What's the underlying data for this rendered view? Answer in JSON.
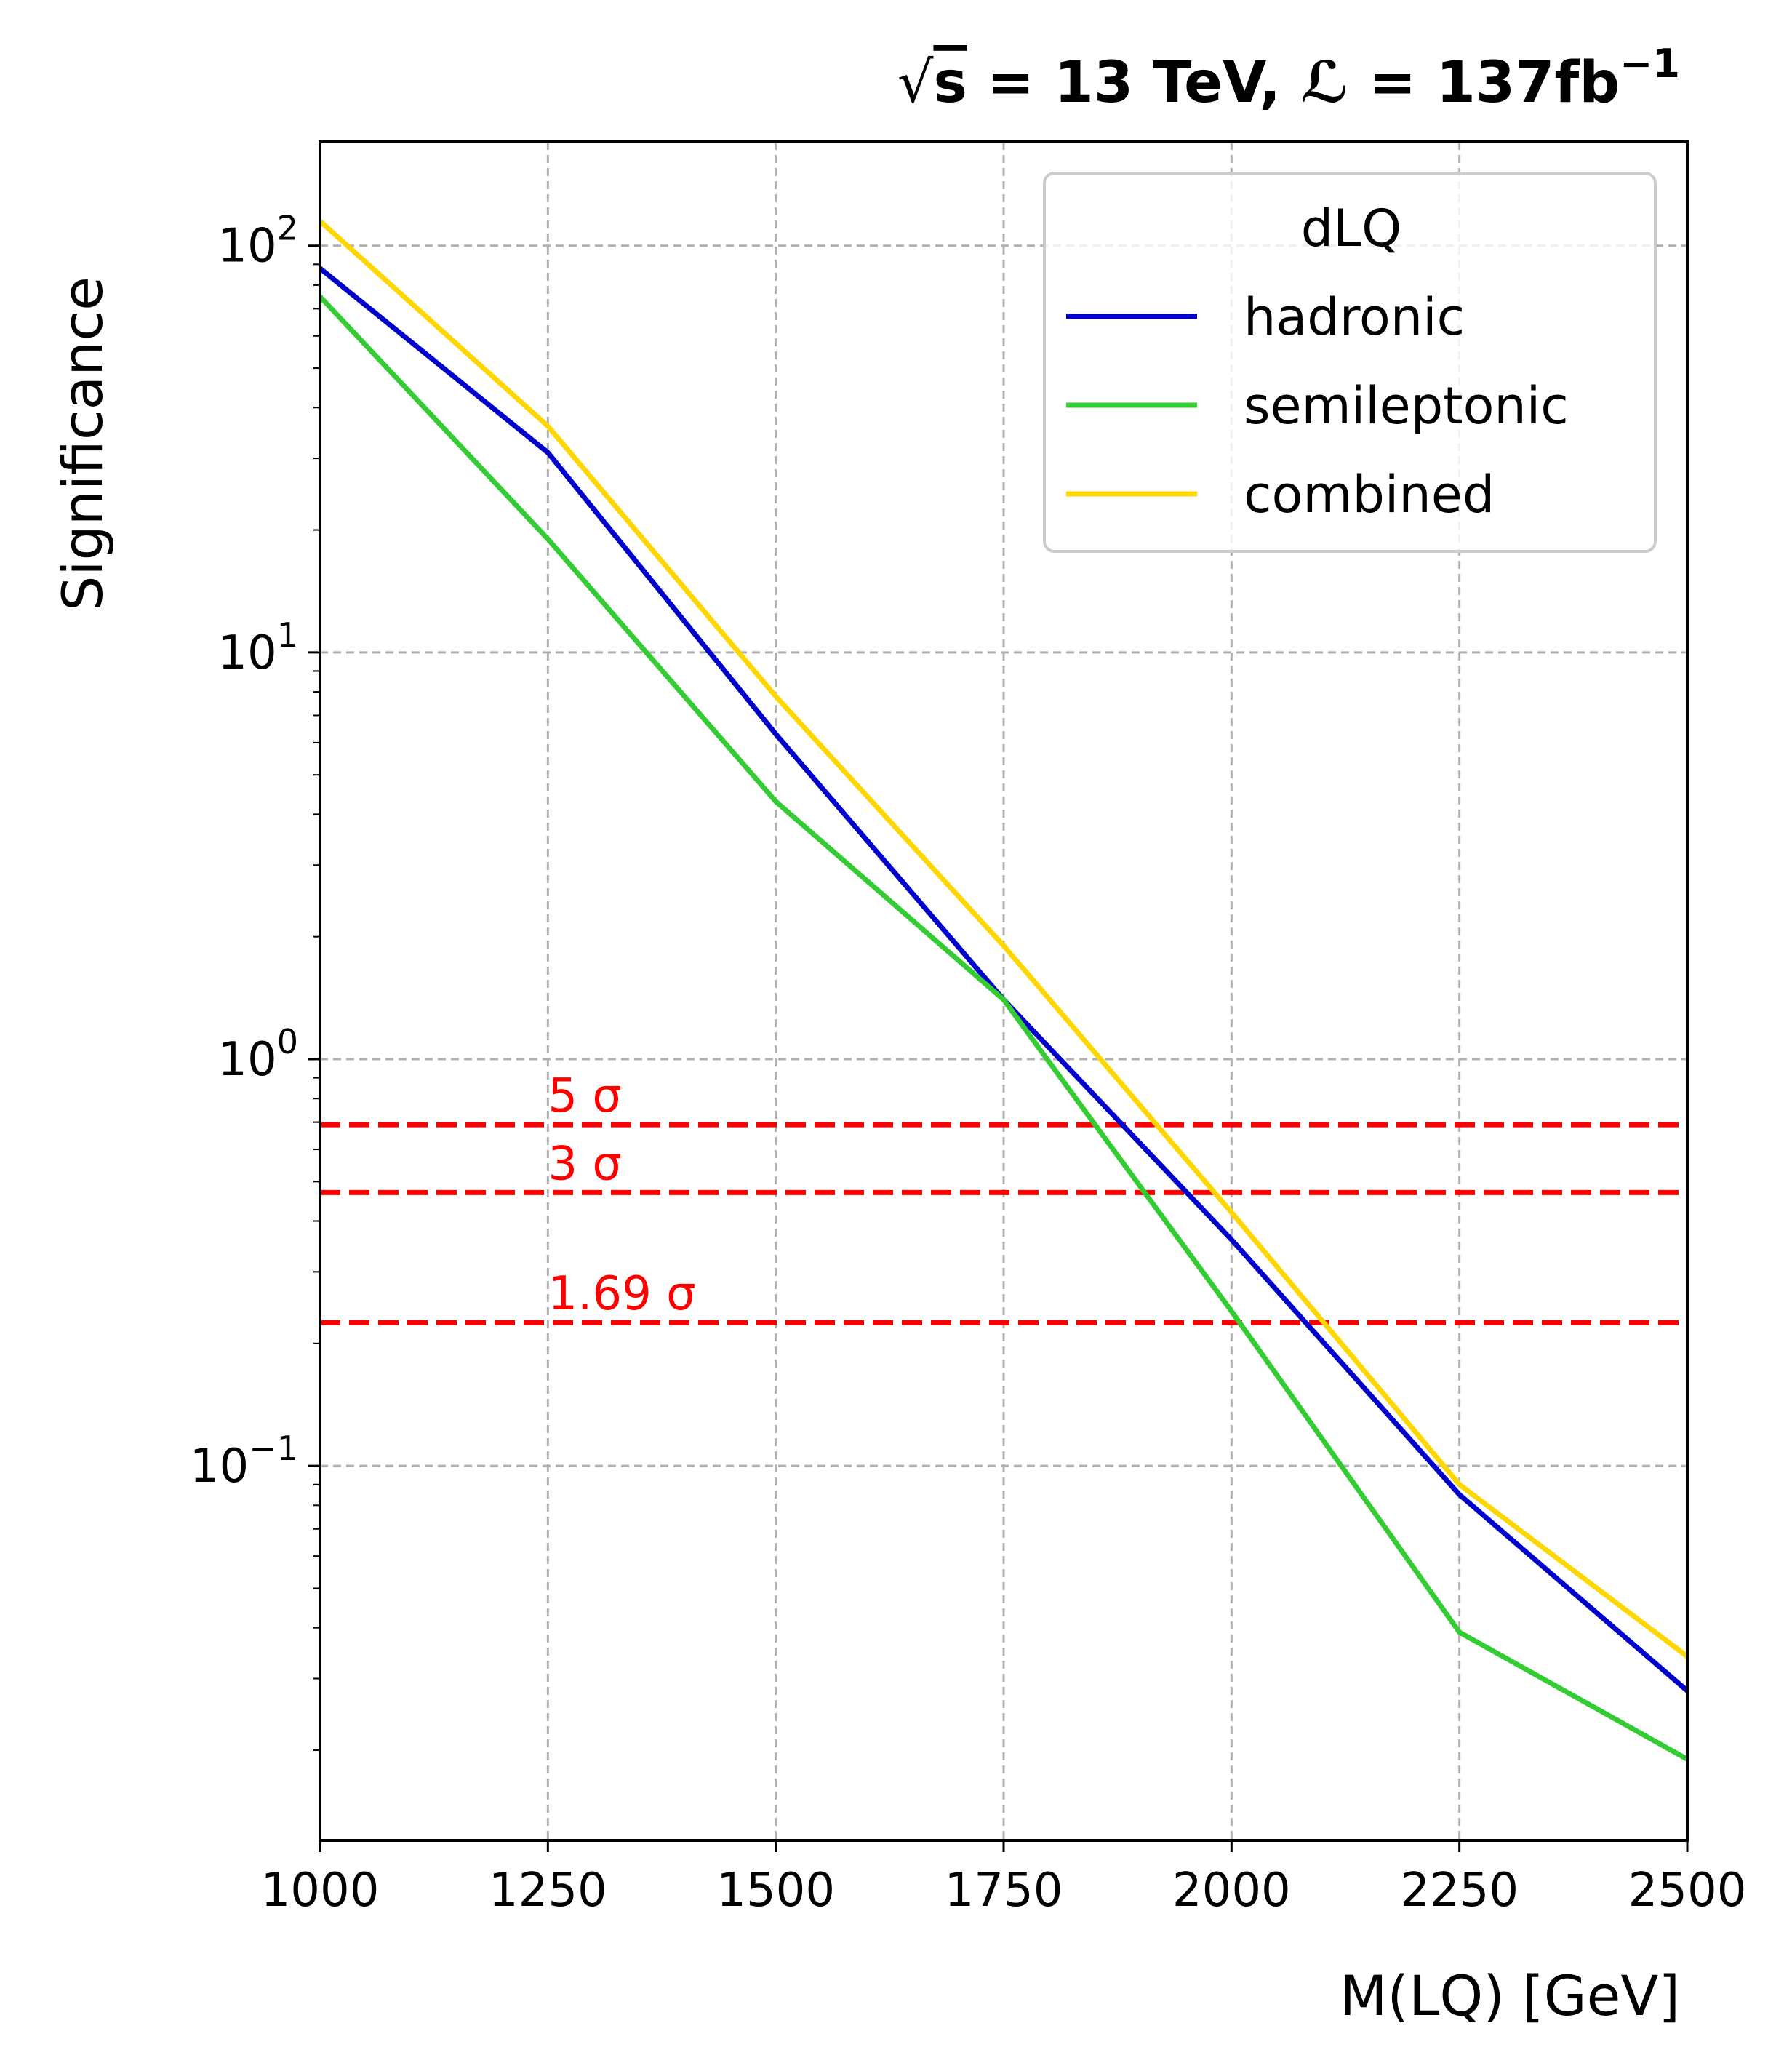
{
  "chart_data": {
    "type": "line",
    "title_prefix": "√",
    "title_s": "s",
    "title_rest": " = 13 TeV, ℒ = 137fb",
    "title_sup": "−1",
    "xlabel": "M(LQ) [GeV]",
    "ylabel": "Significance",
    "x_scale": "linear",
    "y_scale": "log",
    "xlim": [
      1000,
      2500
    ],
    "ylim": [
      0.012,
      180
    ],
    "x_ticks": [
      "1000",
      "1250",
      "1500",
      "1750",
      "2000",
      "2250",
      "2500"
    ],
    "y_ticks": [
      {
        "value": 100,
        "base": "10",
        "exp": "2"
      },
      {
        "value": 10,
        "base": "10",
        "exp": "1"
      },
      {
        "value": 1,
        "base": "10",
        "exp": "0"
      },
      {
        "value": 0.1,
        "base": "10",
        "exp": "−1"
      }
    ],
    "grid": true,
    "legend": {
      "title": "dLQ",
      "placement": "top-right"
    },
    "x": [
      1000,
      1250,
      1500,
      1750,
      2000,
      2250,
      2500
    ],
    "series": [
      {
        "name": "hadronic",
        "color": "#0000cc",
        "values": [
          88,
          31,
          6.3,
          1.4,
          0.36,
          0.085,
          0.028
        ]
      },
      {
        "name": "semileptonic",
        "color": "#33cc33",
        "values": [
          75,
          19,
          4.3,
          1.4,
          0.24,
          0.039,
          0.019
        ]
      },
      {
        "name": "combined",
        "color": "#ffd700",
        "values": [
          115,
          36,
          7.8,
          1.9,
          0.42,
          0.09,
          0.034
        ]
      }
    ],
    "reference_lines": [
      {
        "label": "5 σ",
        "value": 0.69,
        "color": "#ff0000"
      },
      {
        "label": "3 σ",
        "value": 0.47,
        "color": "#ff0000"
      },
      {
        "label": "1.69 σ",
        "value": 0.225,
        "color": "#ff0000"
      }
    ]
  }
}
